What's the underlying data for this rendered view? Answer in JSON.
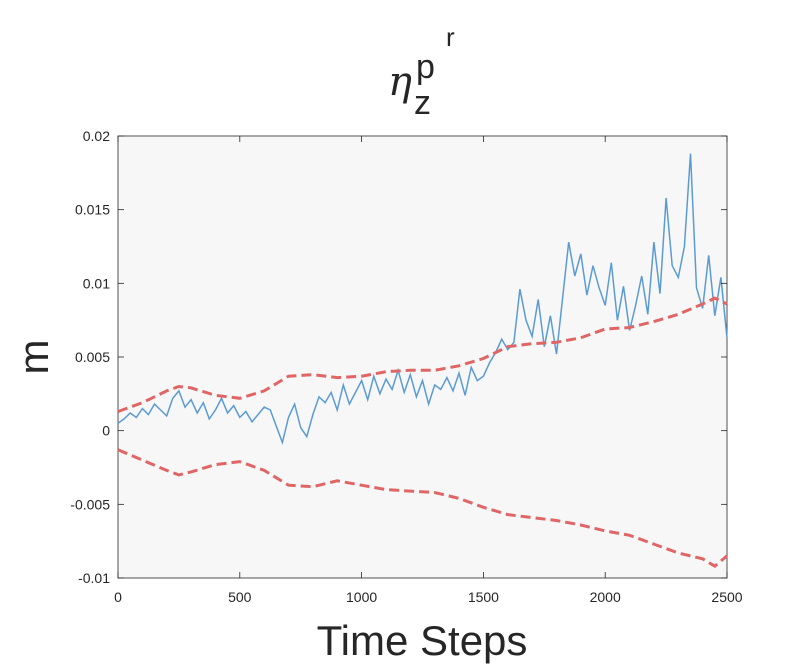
{
  "chart_data": {
    "type": "line",
    "title": {
      "symbol": "η",
      "subscript": "z",
      "superscript": "p",
      "superscript_sup": "r"
    },
    "xlabel": "Time Steps",
    "ylabel": "m",
    "xlim": [
      0,
      2500
    ],
    "ylim": [
      -0.01,
      0.02
    ],
    "xticks": [
      "0",
      "500",
      "1000",
      "1500",
      "2000",
      "2500"
    ],
    "yticks": [
      "-0.01",
      "-0.005",
      "0",
      "0.005",
      "0.01",
      "0.015",
      "0.02"
    ],
    "grid": false,
    "background": "#f7f7f7",
    "series": [
      {
        "style": "solid",
        "color": "#5b9bd5",
        "x": [
          0,
          25,
          50,
          75,
          100,
          125,
          150,
          175,
          200,
          225,
          250,
          275,
          300,
          325,
          350,
          375,
          400,
          425,
          450,
          475,
          500,
          525,
          550,
          575,
          600,
          625,
          650,
          675,
          700,
          725,
          750,
          775,
          800,
          825,
          850,
          875,
          900,
          925,
          950,
          975,
          1000,
          1025,
          1050,
          1075,
          1100,
          1125,
          1150,
          1175,
          1200,
          1225,
          1250,
          1275,
          1300,
          1325,
          1350,
          1375,
          1400,
          1425,
          1450,
          1475,
          1500,
          1525,
          1550,
          1575,
          1600,
          1625,
          1650,
          1675,
          1700,
          1725,
          1750,
          1775,
          1800,
          1825,
          1850,
          1875,
          1900,
          1925,
          1950,
          1975,
          2000,
          2025,
          2050,
          2075,
          2100,
          2125,
          2150,
          2175,
          2200,
          2225,
          2250,
          2275,
          2300,
          2325,
          2350,
          2375,
          2400,
          2425,
          2450,
          2475,
          2500
        ],
        "y": [
          0.0005,
          0.0008,
          0.0012,
          0.0009,
          0.0015,
          0.0011,
          0.0018,
          0.0014,
          0.001,
          0.0022,
          0.0027,
          0.0016,
          0.0021,
          0.0012,
          0.0019,
          0.0008,
          0.0014,
          0.0022,
          0.0012,
          0.0017,
          0.0009,
          0.0013,
          0.0006,
          0.0011,
          0.0016,
          0.0014,
          0.0003,
          -0.0008,
          0.0009,
          0.0018,
          0.0002,
          -0.0004,
          0.0011,
          0.0023,
          0.0019,
          0.0026,
          0.0014,
          0.0031,
          0.0018,
          0.0026,
          0.0034,
          0.0021,
          0.0037,
          0.0025,
          0.0035,
          0.0028,
          0.0041,
          0.0026,
          0.0038,
          0.0023,
          0.0034,
          0.0018,
          0.0031,
          0.0028,
          0.0036,
          0.0027,
          0.0039,
          0.0024,
          0.0043,
          0.0034,
          0.0037,
          0.0046,
          0.0053,
          0.0062,
          0.0055,
          0.006,
          0.0096,
          0.0075,
          0.0064,
          0.0089,
          0.0057,
          0.0078,
          0.0052,
          0.009,
          0.0128,
          0.0105,
          0.012,
          0.0092,
          0.0112,
          0.0097,
          0.0085,
          0.0114,
          0.0075,
          0.0098,
          0.0068,
          0.0085,
          0.0105,
          0.0079,
          0.0128,
          0.0093,
          0.0158,
          0.0112,
          0.0104,
          0.0125,
          0.0188,
          0.0097,
          0.0083,
          0.0119,
          0.0078,
          0.0104,
          0.0063
        ]
      },
      {
        "style": "dashed",
        "color": "#e06666",
        "x": [
          0,
          100,
          200,
          250,
          300,
          400,
          500,
          600,
          700,
          800,
          900,
          1000,
          1100,
          1200,
          1300,
          1400,
          1500,
          1600,
          1700,
          1800,
          1900,
          2000,
          2100,
          2200,
          2300,
          2400,
          2450,
          2500
        ],
        "y": [
          0.0013,
          0.0019,
          0.0027,
          0.003,
          0.0029,
          0.0024,
          0.0022,
          0.0027,
          0.0037,
          0.0038,
          0.0036,
          0.0037,
          0.004,
          0.0041,
          0.0041,
          0.0044,
          0.0049,
          0.0057,
          0.0059,
          0.006,
          0.0063,
          0.0069,
          0.007,
          0.0074,
          0.0079,
          0.0086,
          0.009,
          0.0086
        ]
      },
      {
        "style": "dashed",
        "color": "#e06666",
        "x": [
          0,
          100,
          200,
          250,
          300,
          400,
          500,
          600,
          700,
          800,
          900,
          1000,
          1100,
          1200,
          1300,
          1400,
          1500,
          1600,
          1700,
          1800,
          1900,
          2000,
          2100,
          2200,
          2300,
          2400,
          2450,
          2500
        ],
        "y": [
          -0.0013,
          -0.002,
          -0.0027,
          -0.003,
          -0.0028,
          -0.0023,
          -0.0021,
          -0.0027,
          -0.0037,
          -0.0038,
          -0.0034,
          -0.0037,
          -0.004,
          -0.0041,
          -0.0042,
          -0.0046,
          -0.0052,
          -0.0057,
          -0.0059,
          -0.0061,
          -0.0064,
          -0.0068,
          -0.0071,
          -0.0077,
          -0.0083,
          -0.0087,
          -0.0092,
          -0.0085
        ]
      }
    ]
  }
}
